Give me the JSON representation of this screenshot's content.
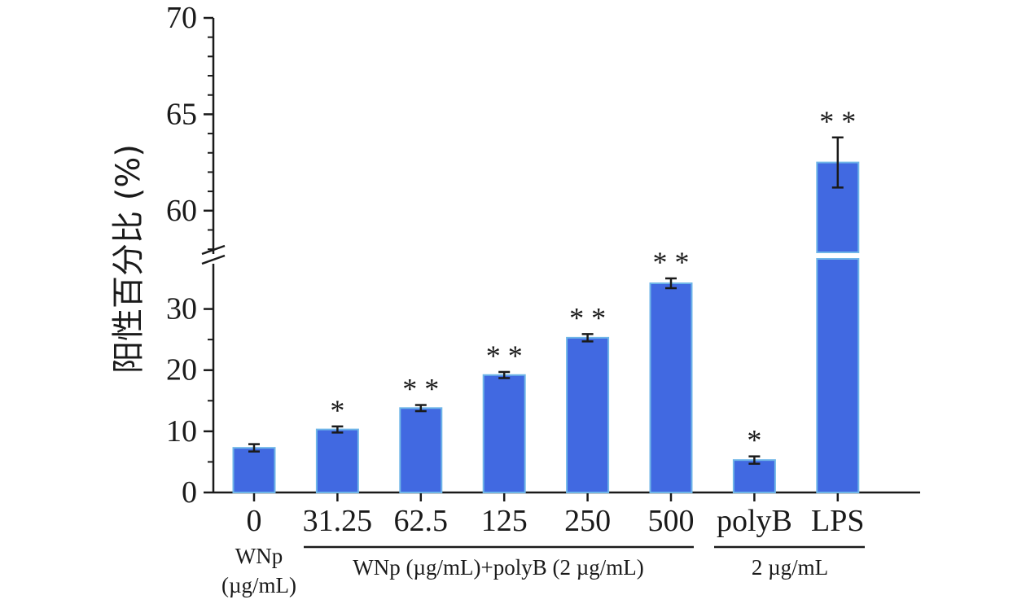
{
  "chart_data": {
    "type": "bar",
    "ylabel": "阳性百分比 (%)",
    "categories": [
      "0",
      "31.25",
      "62.5",
      "125",
      "250",
      "500",
      "polyB",
      "LPS"
    ],
    "values": [
      7.3,
      10.3,
      13.8,
      19.2,
      25.3,
      34.2,
      5.3,
      62.5
    ],
    "errors": [
      0.6,
      0.5,
      0.5,
      0.5,
      0.6,
      0.8,
      0.6,
      1.3
    ],
    "significance": [
      "",
      "*",
      "**",
      "**",
      "**",
      "**",
      "*",
      "**"
    ],
    "y_axis_break": {
      "lower_range": [
        0,
        35
      ],
      "upper_range": [
        57.5,
        70
      ],
      "lower_ticks": [
        0,
        10,
        20,
        30
      ],
      "upper_ticks": [
        60,
        65,
        70
      ]
    },
    "bar_color": "#4169e1",
    "bar_edge_color": "#6fb6e8",
    "group_labels": {
      "wnp_line1": "WNp",
      "wnp_line2": "(µg/mL)",
      "combo": "WNp (µg/mL)+polyB (2 µg/mL)",
      "controls": "2 µg/mL"
    }
  }
}
